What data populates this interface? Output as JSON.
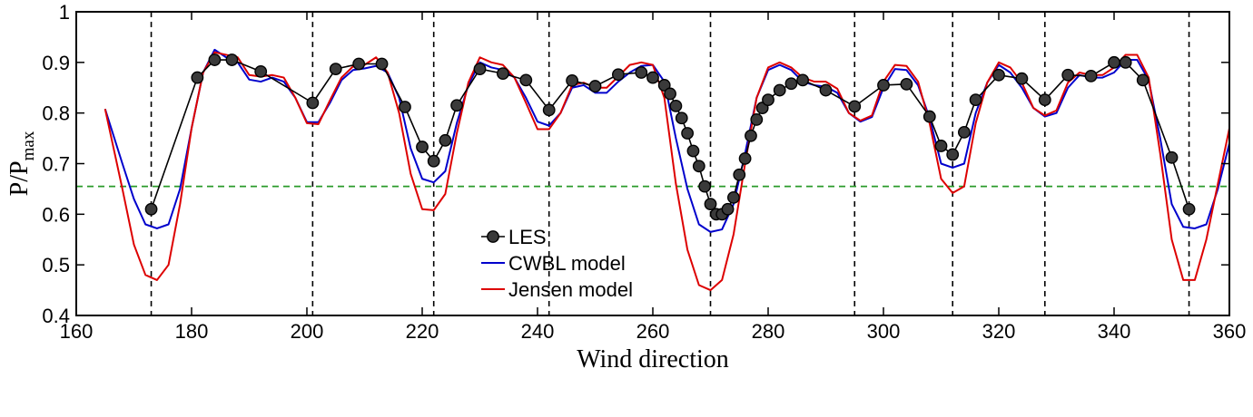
{
  "chart_data": {
    "type": "line",
    "xlabel": "Wind direction",
    "ylabel": "P/P",
    "ylabel_sub": "max",
    "xlim": [
      160,
      360
    ],
    "ylim": [
      0.4,
      1.0
    ],
    "xticks": [
      160,
      180,
      200,
      220,
      240,
      260,
      280,
      300,
      320,
      340,
      360
    ],
    "yticks": [
      0.4,
      0.5,
      0.6,
      0.7,
      0.8,
      0.9,
      1.0
    ],
    "ytick_labels": [
      "0.4",
      "0.5",
      "0.6",
      "0.7",
      "0.8",
      "0.9",
      "1"
    ],
    "legend_position": "center",
    "threshold_line": {
      "y": 0.655,
      "color": "#2a9a2a"
    },
    "vertical_markers": {
      "x": [
        173,
        201,
        222,
        242,
        270,
        295,
        312,
        328,
        353
      ],
      "color": "#000000"
    },
    "series": [
      {
        "name": "LES",
        "color": "#000000",
        "marker": "circle",
        "x": [
          173,
          181,
          184,
          187,
          192,
          201,
          205,
          209,
          213,
          217,
          220,
          222,
          224,
          226,
          230,
          234,
          238,
          242,
          246,
          250,
          254,
          258,
          260,
          262,
          263,
          264,
          265,
          266,
          267,
          268,
          269,
          270,
          271,
          272,
          273,
          274,
          275,
          276,
          277,
          278,
          279,
          280,
          282,
          284,
          286,
          290,
          295,
          300,
          304,
          308,
          310,
          312,
          314,
          316,
          320,
          324,
          328,
          332,
          336,
          340,
          342,
          345,
          350,
          353
        ],
        "y": [
          0.61,
          0.87,
          0.905,
          0.905,
          0.882,
          0.82,
          0.887,
          0.897,
          0.897,
          0.812,
          0.733,
          0.705,
          0.746,
          0.815,
          0.887,
          0.878,
          0.865,
          0.806,
          0.864,
          0.853,
          0.876,
          0.88,
          0.87,
          0.855,
          0.838,
          0.814,
          0.79,
          0.76,
          0.725,
          0.695,
          0.655,
          0.62,
          0.6,
          0.6,
          0.61,
          0.633,
          0.678,
          0.71,
          0.755,
          0.787,
          0.81,
          0.826,
          0.845,
          0.858,
          0.865,
          0.845,
          0.813,
          0.855,
          0.857,
          0.793,
          0.735,
          0.718,
          0.762,
          0.826,
          0.875,
          0.868,
          0.826,
          0.875,
          0.873,
          0.9,
          0.9,
          0.865,
          0.712,
          0.61
        ]
      },
      {
        "name": "CWBL model",
        "color": "#0000cc",
        "x": [
          165,
          168,
          170,
          172,
          174,
          176,
          178,
          180,
          182,
          184,
          186,
          188,
          190,
          192,
          194,
          196,
          198,
          200,
          202,
          204,
          206,
          208,
          210,
          212,
          214,
          216,
          218,
          220,
          222,
          224,
          226,
          228,
          230,
          232,
          234,
          236,
          238,
          240,
          242,
          244,
          246,
          248,
          250,
          252,
          254,
          256,
          258,
          260,
          262,
          264,
          266,
          268,
          270,
          272,
          274,
          276,
          278,
          280,
          282,
          284,
          286,
          288,
          290,
          292,
          294,
          296,
          298,
          300,
          302,
          304,
          306,
          308,
          310,
          312,
          314,
          316,
          318,
          320,
          322,
          324,
          326,
          328,
          330,
          332,
          334,
          336,
          338,
          340,
          342,
          344,
          346,
          348,
          350,
          352,
          354,
          356,
          358,
          360
        ],
        "y": [
          0.808,
          0.7,
          0.63,
          0.58,
          0.572,
          0.58,
          0.65,
          0.77,
          0.88,
          0.925,
          0.91,
          0.9,
          0.866,
          0.862,
          0.87,
          0.862,
          0.83,
          0.782,
          0.782,
          0.82,
          0.865,
          0.885,
          0.888,
          0.893,
          0.88,
          0.83,
          0.73,
          0.67,
          0.663,
          0.685,
          0.78,
          0.855,
          0.9,
          0.89,
          0.885,
          0.87,
          0.83,
          0.783,
          0.775,
          0.8,
          0.85,
          0.855,
          0.84,
          0.84,
          0.862,
          0.88,
          0.893,
          0.895,
          0.862,
          0.75,
          0.65,
          0.58,
          0.565,
          0.57,
          0.62,
          0.72,
          0.83,
          0.885,
          0.895,
          0.885,
          0.862,
          0.855,
          0.852,
          0.84,
          0.8,
          0.783,
          0.792,
          0.85,
          0.887,
          0.885,
          0.855,
          0.79,
          0.7,
          0.692,
          0.7,
          0.8,
          0.86,
          0.895,
          0.88,
          0.85,
          0.81,
          0.793,
          0.8,
          0.85,
          0.875,
          0.87,
          0.87,
          0.88,
          0.905,
          0.905,
          0.865,
          0.75,
          0.62,
          0.575,
          0.572,
          0.58,
          0.65,
          0.74
        ]
      },
      {
        "name": "Jensen model",
        "color": "#dd0000",
        "x": [
          165,
          168,
          170,
          172,
          174,
          176,
          178,
          180,
          182,
          184,
          186,
          188,
          190,
          192,
          194,
          196,
          198,
          200,
          202,
          204,
          206,
          208,
          210,
          212,
          214,
          216,
          218,
          220,
          222,
          224,
          226,
          228,
          230,
          232,
          234,
          236,
          238,
          240,
          242,
          244,
          246,
          248,
          250,
          252,
          254,
          256,
          258,
          260,
          262,
          264,
          266,
          268,
          270,
          272,
          274,
          276,
          278,
          280,
          282,
          284,
          286,
          288,
          290,
          292,
          294,
          296,
          298,
          300,
          302,
          304,
          306,
          308,
          310,
          312,
          314,
          316,
          318,
          320,
          322,
          324,
          326,
          328,
          330,
          332,
          334,
          336,
          338,
          340,
          342,
          344,
          346,
          348,
          350,
          352,
          354,
          356,
          358,
          360
        ],
        "y": [
          0.808,
          0.65,
          0.54,
          0.48,
          0.47,
          0.5,
          0.62,
          0.77,
          0.88,
          0.92,
          0.915,
          0.91,
          0.875,
          0.872,
          0.875,
          0.87,
          0.83,
          0.78,
          0.778,
          0.825,
          0.87,
          0.892,
          0.895,
          0.91,
          0.88,
          0.8,
          0.68,
          0.61,
          0.608,
          0.64,
          0.76,
          0.86,
          0.91,
          0.9,
          0.895,
          0.87,
          0.82,
          0.768,
          0.768,
          0.8,
          0.855,
          0.86,
          0.85,
          0.85,
          0.872,
          0.895,
          0.9,
          0.895,
          0.83,
          0.66,
          0.53,
          0.46,
          0.45,
          0.47,
          0.56,
          0.7,
          0.83,
          0.89,
          0.9,
          0.89,
          0.87,
          0.862,
          0.862,
          0.848,
          0.8,
          0.785,
          0.795,
          0.862,
          0.895,
          0.893,
          0.862,
          0.78,
          0.67,
          0.642,
          0.655,
          0.78,
          0.86,
          0.9,
          0.89,
          0.86,
          0.81,
          0.795,
          0.805,
          0.86,
          0.88,
          0.875,
          0.875,
          0.89,
          0.915,
          0.915,
          0.87,
          0.72,
          0.55,
          0.47,
          0.47,
          0.55,
          0.66,
          0.77
        ]
      }
    ]
  }
}
